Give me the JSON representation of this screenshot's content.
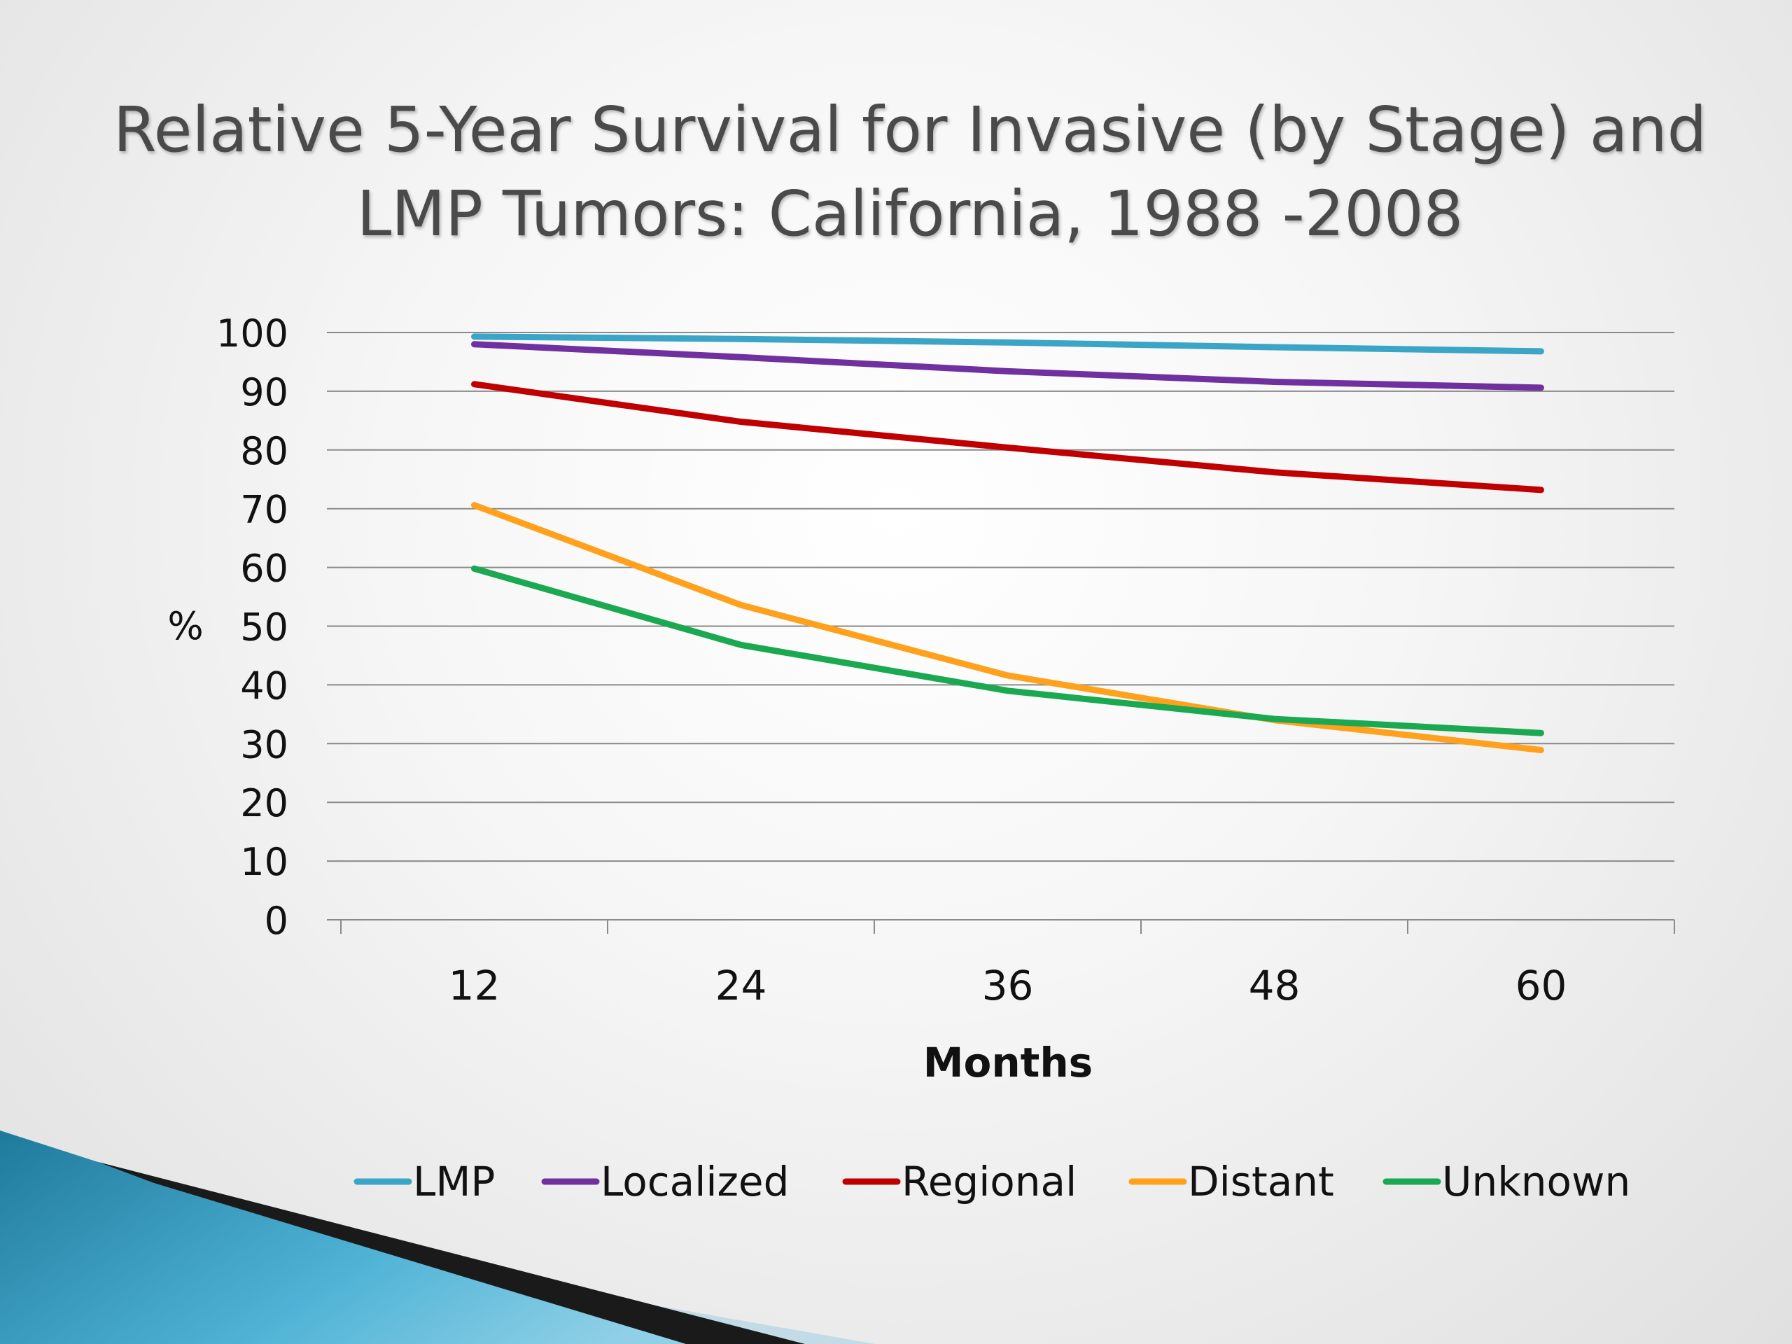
{
  "chart_data": {
    "type": "line",
    "title": "Relative 5-Year Survival for Invasive (by Stage) and\nLMP Tumors: California, 1988 -2008",
    "xlabel": "Months",
    "ylabel": "%",
    "x": [
      12,
      24,
      36,
      48,
      60
    ],
    "xlim": [
      6,
      66
    ],
    "ylim": [
      0,
      100
    ],
    "yticks": [
      0,
      10,
      20,
      30,
      40,
      50,
      60,
      70,
      80,
      90,
      100
    ],
    "grid": true,
    "legend": "bottom",
    "series": [
      {
        "name": "LMP",
        "color": "#3aa5c6",
        "values": [
          99.3,
          98.9,
          98.3,
          97.5,
          96.8
        ]
      },
      {
        "name": "Localized",
        "color": "#7030a0",
        "values": [
          98.0,
          95.8,
          93.4,
          91.6,
          90.6
        ]
      },
      {
        "name": "Regional",
        "color": "#c00000",
        "values": [
          91.2,
          84.8,
          80.4,
          76.2,
          73.2
        ]
      },
      {
        "name": "Distant",
        "color": "#ffa11c",
        "values": [
          70.6,
          53.6,
          41.6,
          34.0,
          28.9
        ]
      },
      {
        "name": "Unknown",
        "color": "#1aa850",
        "values": [
          59.8,
          46.8,
          39.0,
          34.2,
          31.8
        ]
      }
    ]
  }
}
